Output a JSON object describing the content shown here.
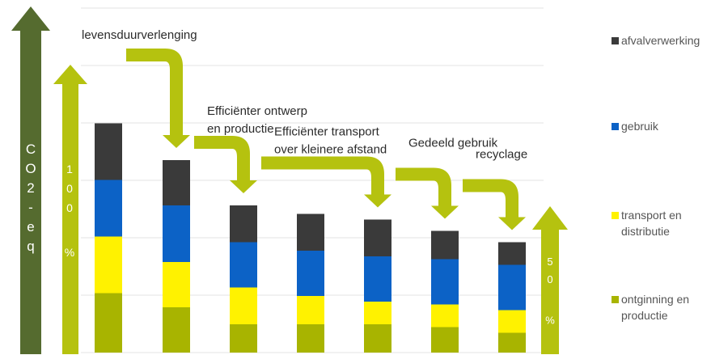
{
  "chart_data": {
    "type": "bar",
    "stacked": true,
    "categories": [
      "",
      "levensduurverlenging",
      "Efficiënter ontwerp en productie",
      "Efficiënter transport over kleinere afstand",
      "Gedeeld gebruik",
      "recyclage",
      ""
    ],
    "series": [
      {
        "name": "ontginning en productie",
        "color": "#a8b400",
        "values": [
          21,
          16,
          10,
          10,
          10,
          9,
          7
        ]
      },
      {
        "name": "transport en distributie",
        "color": "#fff200",
        "values": [
          20,
          16,
          13,
          10,
          8,
          8,
          8
        ]
      },
      {
        "name": "gebruik",
        "color": "#0c62c6",
        "values": [
          20,
          20,
          16,
          16,
          16,
          16,
          16
        ]
      },
      {
        "name": "afvalverwerking",
        "color": "#3a3a3a",
        "values": [
          20,
          16,
          13,
          13,
          13,
          10,
          8
        ]
      }
    ],
    "ylim": [
      0,
      100
    ],
    "grid": true,
    "legend_position": "right",
    "annotations": [
      {
        "text": "levensduurverlenging",
        "from": 0,
        "to": 1
      },
      {
        "text": "Efficiënter ontwerp",
        "text2": "en productie",
        "from": 1,
        "to": 2
      },
      {
        "text": "Efficiënter transport",
        "text2": "over kleinere afstand",
        "from": 2,
        "to": 4
      },
      {
        "text": "Gedeeld gebruik",
        "from": 4,
        "to": 5
      },
      {
        "text": "recyclage",
        "from": 5,
        "to": 6
      }
    ],
    "axis_arrows": {
      "co2": {
        "text": "CO2-eq",
        "color": "#556b2f"
      },
      "start": {
        "text": "100 %",
        "color": "#b5c20f"
      },
      "end": {
        "text": "50 %",
        "color": "#b5c20f"
      }
    }
  },
  "legend": {
    "items": [
      {
        "key": "afvalverwerking",
        "lines": [
          "afvalverwerking"
        ],
        "color": "#3a3a3a"
      },
      {
        "key": "gebruik",
        "lines": [
          "gebruik"
        ],
        "color": "#0c62c6"
      },
      {
        "key": "transport",
        "lines": [
          "transport en",
          "distributie"
        ],
        "color": "#fff200"
      },
      {
        "key": "ontginning",
        "lines": [
          "ontginning en",
          "productie"
        ],
        "color": "#a8b400"
      }
    ]
  },
  "colors": {
    "arrow_green": "#b5c20f",
    "arrow_dark": "#556b2f",
    "gridline": "#e3e3e3"
  }
}
